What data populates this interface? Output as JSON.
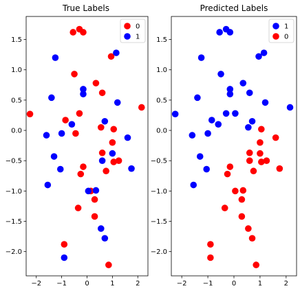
{
  "colors": {
    "class_0": "#ff0000",
    "class_1": "#0000ff"
  },
  "chart_data": [
    {
      "type": "scatter",
      "title": "True Labels",
      "xlabel": "",
      "ylabel": "",
      "xlim": [
        -2.4,
        2.4
      ],
      "ylim": [
        -2.4,
        1.88
      ],
      "xticks": [
        -2,
        -1,
        0,
        1,
        2
      ],
      "yticks": [
        -2.0,
        -1.5,
        -1.0,
        -0.5,
        0.0,
        0.5,
        1.0,
        1.5
      ],
      "xtick_labels": [
        "−2",
        "−1",
        "0",
        "1",
        "2"
      ],
      "ytick_labels": [
        "−2.0",
        "−1.5",
        "−1.0",
        "−0.5",
        "0.0",
        "0.5",
        "1.0",
        "1.5"
      ],
      "grid": false,
      "legend": {
        "placement": "top-right",
        "entries": [
          {
            "label": "0",
            "color": "#ff0000"
          },
          {
            "label": "1",
            "color": "#0000ff"
          }
        ]
      },
      "series": [
        {
          "name": "0",
          "color": "#ff0000",
          "points": [
            [
              -0.55,
              1.62
            ],
            [
              -0.3,
              1.67
            ],
            [
              -0.15,
              1.62
            ],
            [
              0.95,
              1.22
            ],
            [
              -0.5,
              0.93
            ],
            [
              0.35,
              0.78
            ],
            [
              0.6,
              0.62
            ],
            [
              -2.25,
              0.27
            ],
            [
              -0.3,
              0.28
            ],
            [
              -0.85,
              0.17
            ],
            [
              0.55,
              0.05
            ],
            [
              1.05,
              0.02
            ],
            [
              -0.45,
              -0.05
            ],
            [
              2.15,
              0.38
            ],
            [
              0.6,
              -0.37
            ],
            [
              1.0,
              -0.2
            ],
            [
              1.05,
              -0.52
            ],
            [
              1.25,
              -0.5
            ],
            [
              0.75,
              -0.67
            ],
            [
              -0.15,
              -0.6
            ],
            [
              -0.25,
              -0.72
            ],
            [
              0.3,
              -1.14
            ],
            [
              0.15,
              -1.0
            ],
            [
              -0.35,
              -1.28
            ],
            [
              0.3,
              -1.42
            ],
            [
              -0.9,
              -1.88
            ],
            [
              0.85,
              -2.22
            ]
          ]
        },
        {
          "name": "1",
          "color": "#0000ff",
          "points": [
            [
              -1.25,
              1.2
            ],
            [
              1.15,
              1.28
            ],
            [
              -0.15,
              0.68
            ],
            [
              -0.15,
              0.6
            ],
            [
              -1.4,
              0.54
            ],
            [
              1.2,
              0.46
            ],
            [
              0.7,
              0.15
            ],
            [
              -0.6,
              0.1
            ],
            [
              -1.6,
              -0.08
            ],
            [
              -1.0,
              -0.05
            ],
            [
              1.6,
              -0.12
            ],
            [
              -1.3,
              -0.43
            ],
            [
              1.0,
              -0.38
            ],
            [
              0.6,
              -0.5
            ],
            [
              -1.05,
              -0.64
            ],
            [
              1.75,
              -0.63
            ],
            [
              -1.55,
              -0.9
            ],
            [
              0.05,
              -1.0
            ],
            [
              0.35,
              -0.99
            ],
            [
              0.55,
              -1.62
            ],
            [
              0.7,
              -1.78
            ],
            [
              -0.9,
              -2.1
            ]
          ]
        }
      ]
    },
    {
      "type": "scatter",
      "title": "Predicted Labels",
      "xlabel": "",
      "ylabel": "",
      "xlim": [
        -2.4,
        2.4
      ],
      "ylim": [
        -2.4,
        1.88
      ],
      "xticks": [
        -2,
        -1,
        0,
        1,
        2
      ],
      "yticks": [
        -2.0,
        -1.5,
        -1.0,
        -0.5,
        0.0,
        0.5,
        1.0,
        1.5
      ],
      "xtick_labels": [
        "−2",
        "−1",
        "0",
        "1",
        "2"
      ],
      "ytick_labels": [
        "−2.0",
        "−1.5",
        "−1.0",
        "−0.5",
        "0.0",
        "0.5",
        "1.0",
        "1.5"
      ],
      "grid": false,
      "legend": {
        "placement": "top-right",
        "entries": [
          {
            "label": "1",
            "color": "#0000ff"
          },
          {
            "label": "0",
            "color": "#ff0000"
          }
        ]
      },
      "series": [
        {
          "name": "1",
          "color": "#0000ff",
          "points": [
            [
              -0.55,
              1.62
            ],
            [
              -0.3,
              1.67
            ],
            [
              -0.15,
              1.62
            ],
            [
              0.95,
              1.22
            ],
            [
              -0.5,
              0.93
            ],
            [
              0.35,
              0.78
            ],
            [
              0.6,
              0.62
            ],
            [
              -2.25,
              0.27
            ],
            [
              -0.3,
              0.28
            ],
            [
              -0.85,
              0.17
            ],
            [
              0.55,
              0.05
            ],
            [
              2.15,
              0.38
            ],
            [
              -1.25,
              1.2
            ],
            [
              1.15,
              1.28
            ],
            [
              -0.15,
              0.68
            ],
            [
              -0.15,
              0.6
            ],
            [
              -1.4,
              0.54
            ],
            [
              1.2,
              0.46
            ],
            [
              0.7,
              0.15
            ],
            [
              -0.6,
              0.1
            ],
            [
              -1.6,
              -0.08
            ],
            [
              -1.0,
              -0.05
            ],
            [
              -1.55,
              -0.9
            ],
            [
              -1.3,
              -0.43
            ],
            [
              -1.05,
              -0.64
            ],
            [
              0.05,
              0.28
            ]
          ]
        },
        {
          "name": "0",
          "color": "#ff0000",
          "points": [
            [
              1.05,
              0.02
            ],
            [
              1.6,
              -0.12
            ],
            [
              1.0,
              -0.2
            ],
            [
              0.6,
              -0.37
            ],
            [
              1.0,
              -0.38
            ],
            [
              1.25,
              -0.5
            ],
            [
              1.05,
              -0.52
            ],
            [
              0.6,
              -0.5
            ],
            [
              1.75,
              -0.63
            ],
            [
              0.75,
              -0.67
            ],
            [
              -0.15,
              -0.6
            ],
            [
              -0.25,
              -0.72
            ],
            [
              0.05,
              -1.0
            ],
            [
              0.35,
              -0.99
            ],
            [
              0.3,
              -1.14
            ],
            [
              -0.35,
              -1.28
            ],
            [
              0.3,
              -1.42
            ],
            [
              0.55,
              -1.62
            ],
            [
              0.7,
              -1.78
            ],
            [
              -0.9,
              -1.88
            ],
            [
              -0.9,
              -2.1
            ],
            [
              0.85,
              -2.22
            ]
          ]
        }
      ]
    }
  ]
}
